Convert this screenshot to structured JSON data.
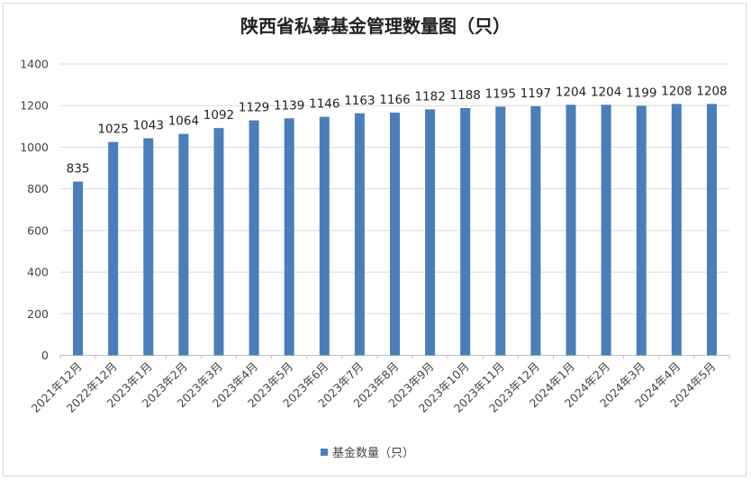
{
  "chart_data": {
    "type": "bar",
    "title": "陕西省私募基金管理数量图（只）",
    "xlabel": "",
    "ylabel": "",
    "ylim": [
      0,
      1400
    ],
    "yticks": [
      0,
      200,
      400,
      600,
      800,
      1000,
      1200,
      1400
    ],
    "grid": true,
    "legend_position": "bottom",
    "categories": [
      "2021年12月",
      "2022年12月",
      "2023年1月",
      "2023年2月",
      "2023年3月",
      "2023年4月",
      "2023年5月",
      "2023年6月",
      "2023年7月",
      "2023年8月",
      "2023年9月",
      "2023年10月",
      "2023年11月",
      "2023年12月",
      "2024年1月",
      "2024年2月",
      "2024年3月",
      "2024年4月",
      "2024年5月"
    ],
    "series": [
      {
        "name": "基金数量（只）",
        "color": "#4a7ebb",
        "values": [
          835,
          1025,
          1043,
          1064,
          1092,
          1129,
          1139,
          1146,
          1163,
          1166,
          1182,
          1188,
          1195,
          1197,
          1204,
          1204,
          1199,
          1208,
          1208
        ]
      }
    ]
  }
}
